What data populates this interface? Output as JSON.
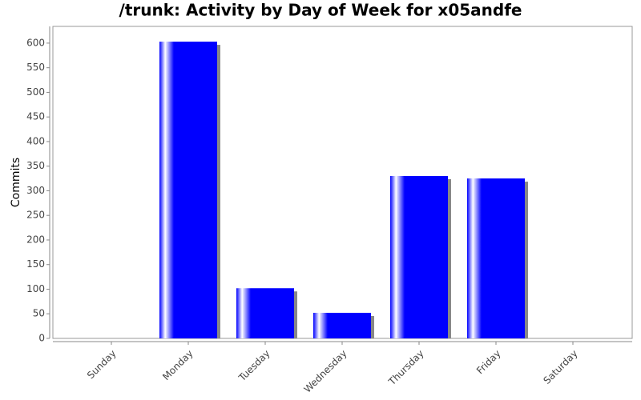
{
  "chart_data": {
    "type": "bar",
    "title": "/trunk: Activity by Day of Week for x05andfe",
    "y_label": "Commits",
    "categories": [
      "Sunday",
      "Monday",
      "Tuesday",
      "Wednesday",
      "Thursday",
      "Friday",
      "Saturday"
    ],
    "values": [
      0,
      603,
      102,
      52,
      330,
      325,
      0
    ],
    "color": "#0000ff",
    "ylim": [
      0,
      634
    ],
    "yticks": [
      0,
      50,
      100,
      150,
      200,
      250,
      300,
      350,
      400,
      450,
      500,
      550,
      600
    ],
    "grid": false
  }
}
